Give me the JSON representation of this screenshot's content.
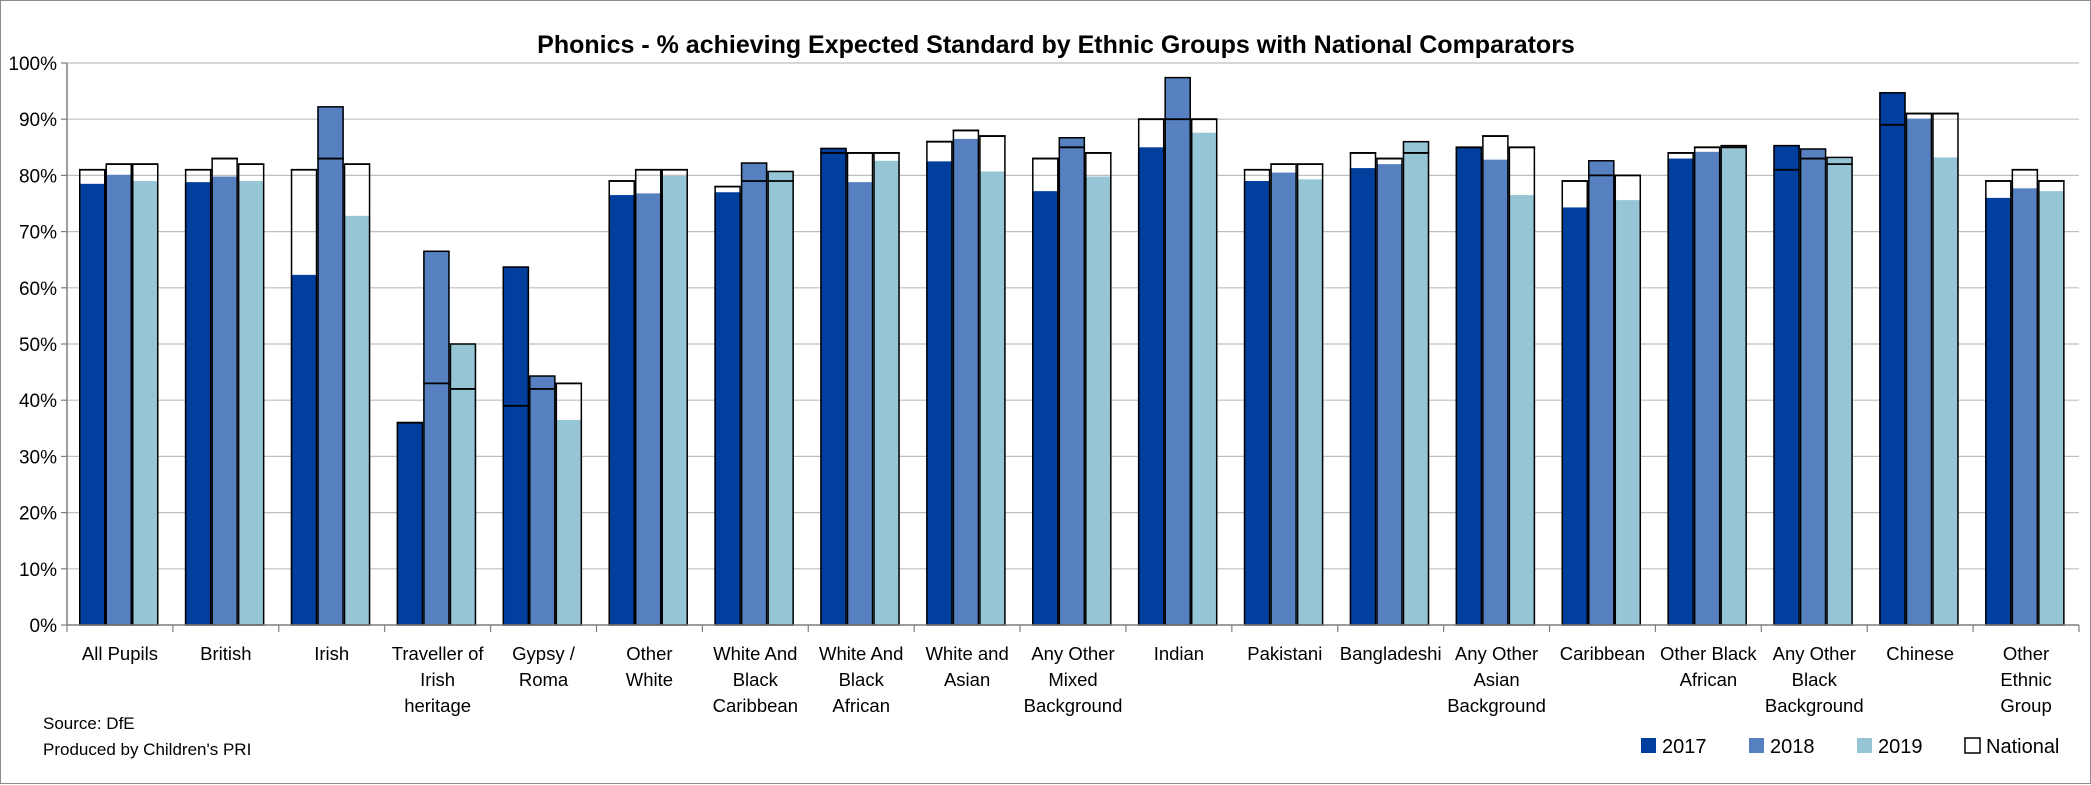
{
  "chart_data": {
    "type": "bar",
    "title": "Phonics - % achieving Expected Standard by Ethnic Groups with National Comparators",
    "xlabel": "",
    "ylabel": "",
    "ylim": [
      0,
      100
    ],
    "y_ticks": [
      "0%",
      "10%",
      "20%",
      "30%",
      "40%",
      "50%",
      "60%",
      "70%",
      "80%",
      "90%",
      "100%"
    ],
    "grid": true,
    "legend_position": "bottom-right",
    "categories": [
      [
        "All Pupils"
      ],
      [
        "British"
      ],
      [
        "Irish"
      ],
      [
        "Traveller of",
        "Irish",
        "heritage"
      ],
      [
        "Gypsy /",
        "Roma"
      ],
      [
        "Other",
        "White"
      ],
      [
        "White And",
        "Black",
        "Caribbean"
      ],
      [
        "White And",
        "Black",
        "African"
      ],
      [
        "White and",
        "Asian"
      ],
      [
        "Any Other",
        "Mixed",
        "Background"
      ],
      [
        "Indian"
      ],
      [
        "Pakistani"
      ],
      [
        "Bangladeshi"
      ],
      [
        "Any Other",
        "Asian",
        "Background"
      ],
      [
        "Caribbean"
      ],
      [
        "Other Black",
        "African"
      ],
      [
        "Any Other",
        "Black",
        "Background"
      ],
      [
        "Chinese"
      ],
      [
        "Other",
        "Ethnic",
        "Group"
      ]
    ],
    "series": [
      {
        "name": "2017",
        "color": "#003f9e",
        "values": [
          78.5,
          78.8,
          62.3,
          36.0,
          63.7,
          76.5,
          77.0,
          84.8,
          82.5,
          77.2,
          85.0,
          79.0,
          81.3,
          85.0,
          74.3,
          83.0,
          85.3,
          94.7,
          76.0
        ]
      },
      {
        "name": "2018",
        "color": "#5680bf",
        "values": [
          80.1,
          79.8,
          92.2,
          66.5,
          44.3,
          76.8,
          82.2,
          78.8,
          86.5,
          86.7,
          97.4,
          80.5,
          82.0,
          82.8,
          82.6,
          84.2,
          84.7,
          90.1,
          77.7
        ]
      },
      {
        "name": "2019",
        "color": "#96c6d6",
        "values": [
          79.0,
          79.0,
          72.8,
          50.0,
          36.5,
          79.9,
          80.7,
          82.6,
          80.7,
          79.8,
          87.6,
          79.3,
          86.0,
          76.5,
          75.6,
          85.3,
          83.2,
          83.2,
          77.2
        ]
      },
      {
        "name": "National",
        "color": "#ffffff",
        "values": [
          [
            81,
            82,
            82
          ],
          [
            81,
            83,
            82
          ],
          [
            81,
            83,
            82
          ],
          [
            36,
            43,
            42
          ],
          [
            39,
            42,
            43
          ],
          [
            79,
            81,
            81
          ],
          [
            78,
            79,
            79
          ],
          [
            84,
            84,
            84
          ],
          [
            86,
            88,
            87
          ],
          [
            83,
            85,
            84
          ],
          [
            90,
            90,
            90
          ],
          [
            81,
            82,
            82
          ],
          [
            84,
            83,
            84
          ],
          [
            85,
            87,
            85
          ],
          [
            79,
            80,
            80
          ],
          [
            84,
            85,
            85
          ],
          [
            81,
            83,
            82
          ],
          [
            89,
            91,
            91
          ],
          [
            79,
            81,
            79
          ]
        ]
      }
    ]
  },
  "notes": {
    "source": "Source: DfE",
    "produced": "Produced by Children's PRI"
  }
}
